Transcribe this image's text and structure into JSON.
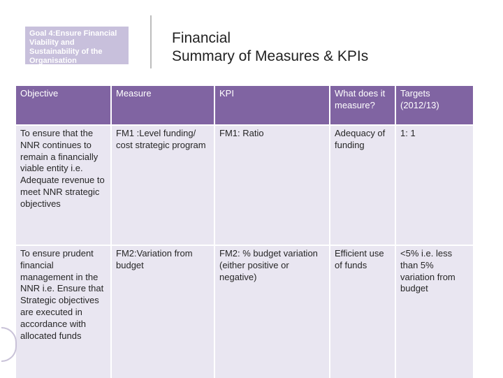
{
  "header": {
    "goal_lines": [
      "Goal 4:Ensure Financial",
      "Viability and",
      "Sustainability of the",
      "Organisation"
    ],
    "title_lines": [
      "Financial",
      "Summary of Measures & KPIs"
    ]
  },
  "table": {
    "columns": [
      "Objective",
      "Measure",
      "KPI",
      "What does it measure?",
      "Targets (2012/13)"
    ],
    "rows": [
      {
        "objective": "To ensure that the NNR continues to remain a financially viable entity i.e. Adequate revenue to meet NNR strategic objectives",
        "measure": "FM1 :Level funding/ cost strategic program",
        "kpi": "FM1: Ratio",
        "what": "Adequacy of funding",
        "target": "1: 1"
      },
      {
        "objective": "To ensure prudent financial management in the NNR i.e. Ensure that Strategic objectives are executed in accordance with allocated funds",
        "measure": "FM2:Variation from budget",
        "kpi": "FM2: % budget variation (either positive or negative)",
        "what": "Efficient use of funds",
        "target": "<5%  i.e. less than 5% variation from budget"
      }
    ]
  },
  "colors": {
    "header_bg": "#8064a2",
    "row_bg": "#e9e6f1",
    "goal_bg": "#c8c0dc"
  },
  "icons": {
    "seal": "logo-seal-icon"
  }
}
